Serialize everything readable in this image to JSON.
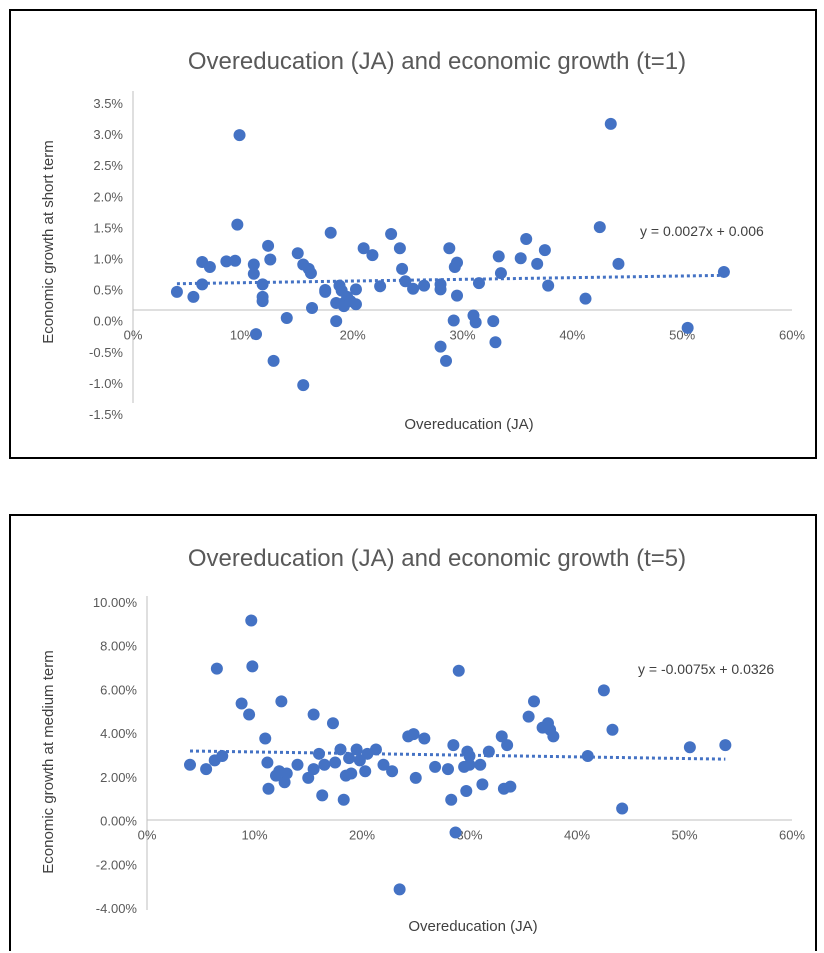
{
  "colors": {
    "point": "#4472C4",
    "trend": "#4472C4",
    "axis": "#BFBFBF",
    "text": "#595959"
  },
  "chart_data": [
    {
      "type": "scatter",
      "title": "Overeducation (JA) and economic growth (t=1)",
      "xlabel": "Overeducation (JA)",
      "ylabel": "Economic growth at short term",
      "xlim": [
        0,
        0.6
      ],
      "ylim": [
        -0.015,
        0.035
      ],
      "x_ticks": [
        "0%",
        "10%",
        "20%",
        "30%",
        "40%",
        "50%",
        "60%"
      ],
      "y_ticks": [
        "3.5%",
        "3.0%",
        "2.5%",
        "2.0%",
        "1.5%",
        "1.0%",
        "0.5%",
        "0.0%",
        "-0.5%",
        "-1.0%",
        "-1.5%"
      ],
      "grid": false,
      "trendline": {
        "slope": 0.0027,
        "intercept": 0.006,
        "label": "y = 0.0027x + 0.006"
      },
      "points": [
        [
          0.04,
          0.0048
        ],
        [
          0.055,
          0.004
        ],
        [
          0.063,
          0.0096
        ],
        [
          0.063,
          0.006
        ],
        [
          0.07,
          0.0088
        ],
        [
          0.085,
          0.0097
        ],
        [
          0.093,
          0.0098
        ],
        [
          0.095,
          0.0156
        ],
        [
          0.097,
          0.03
        ],
        [
          0.11,
          0.0092
        ],
        [
          0.11,
          0.0077
        ],
        [
          0.112,
          -0.002
        ],
        [
          0.118,
          0.006
        ],
        [
          0.118,
          0.004
        ],
        [
          0.118,
          0.0033
        ],
        [
          0.123,
          0.0122
        ],
        [
          0.125,
          0.01
        ],
        [
          0.128,
          -0.0063
        ],
        [
          0.14,
          0.0006
        ],
        [
          0.15,
          0.011
        ],
        [
          0.155,
          0.0092
        ],
        [
          0.155,
          -0.0102
        ],
        [
          0.16,
          0.0085
        ],
        [
          0.162,
          0.0078
        ],
        [
          0.163,
          0.0022
        ],
        [
          0.175,
          0.0048
        ],
        [
          0.175,
          0.0051
        ],
        [
          0.18,
          0.0143
        ],
        [
          0.185,
          0.003
        ],
        [
          0.185,
          0.0001
        ],
        [
          0.188,
          0.0058
        ],
        [
          0.19,
          0.005
        ],
        [
          0.192,
          0.003
        ],
        [
          0.192,
          0.0025
        ],
        [
          0.195,
          0.004
        ],
        [
          0.198,
          0.0033
        ],
        [
          0.203,
          0.0052
        ],
        [
          0.203,
          0.0028
        ],
        [
          0.21,
          0.0118
        ],
        [
          0.218,
          0.0107
        ],
        [
          0.225,
          0.0057
        ],
        [
          0.235,
          0.0141
        ],
        [
          0.243,
          0.0118
        ],
        [
          0.245,
          0.0085
        ],
        [
          0.248,
          0.0065
        ],
        [
          0.255,
          0.0053
        ],
        [
          0.265,
          0.0058
        ],
        [
          0.28,
          0.006
        ],
        [
          0.28,
          0.0052
        ],
        [
          0.28,
          -0.004
        ],
        [
          0.285,
          -0.0063
        ],
        [
          0.288,
          0.0118
        ],
        [
          0.292,
          0.0002
        ],
        [
          0.293,
          0.0088
        ],
        [
          0.295,
          0.0095
        ],
        [
          0.295,
          0.0042
        ],
        [
          0.31,
          0.001
        ],
        [
          0.312,
          -0.0001
        ],
        [
          0.315,
          0.0062
        ],
        [
          0.328,
          0.0001
        ],
        [
          0.33,
          -0.0033
        ],
        [
          0.333,
          0.0105
        ],
        [
          0.335,
          0.0078
        ],
        [
          0.353,
          0.0102
        ],
        [
          0.358,
          0.0133
        ],
        [
          0.368,
          0.0093
        ],
        [
          0.375,
          0.0115
        ],
        [
          0.378,
          0.0058
        ],
        [
          0.412,
          0.0037
        ],
        [
          0.425,
          0.0152
        ],
        [
          0.435,
          0.0318
        ],
        [
          0.442,
          0.0093
        ],
        [
          0.505,
          -0.001
        ],
        [
          0.538,
          0.008
        ]
      ]
    },
    {
      "type": "scatter",
      "title": "Overeducation (JA) and economic growth (t=5)",
      "xlabel": "Overeducation (JA)",
      "ylabel": "Economic growth at medium term",
      "xlim": [
        0,
        0.6
      ],
      "ylim": [
        -0.04,
        0.1
      ],
      "x_ticks": [
        "0%",
        "10%",
        "20%",
        "30%",
        "40%",
        "50%",
        "60%"
      ],
      "y_ticks": [
        "10.00%",
        "8.00%",
        "6.00%",
        "4.00%",
        "2.00%",
        "0.00%",
        "-2.00%",
        "-4.00%"
      ],
      "grid": false,
      "trendline": {
        "slope": -0.0075,
        "intercept": 0.0326,
        "label": "y = -0.0075x + 0.0326"
      },
      "points": [
        [
          0.04,
          0.026
        ],
        [
          0.055,
          0.024
        ],
        [
          0.063,
          0.028
        ],
        [
          0.065,
          0.07
        ],
        [
          0.07,
          0.03
        ],
        [
          0.088,
          0.054
        ],
        [
          0.095,
          0.049
        ],
        [
          0.097,
          0.092
        ],
        [
          0.098,
          0.071
        ],
        [
          0.11,
          0.038
        ],
        [
          0.112,
          0.027
        ],
        [
          0.113,
          0.015
        ],
        [
          0.12,
          0.021
        ],
        [
          0.123,
          0.023
        ],
        [
          0.125,
          0.055
        ],
        [
          0.128,
          0.018
        ],
        [
          0.13,
          0.022
        ],
        [
          0.14,
          0.026
        ],
        [
          0.15,
          0.02
        ],
        [
          0.155,
          0.049
        ],
        [
          0.155,
          0.024
        ],
        [
          0.16,
          0.031
        ],
        [
          0.163,
          0.012
        ],
        [
          0.165,
          0.026
        ],
        [
          0.173,
          0.045
        ],
        [
          0.175,
          0.027
        ],
        [
          0.18,
          0.033
        ],
        [
          0.183,
          0.01
        ],
        [
          0.185,
          0.021
        ],
        [
          0.188,
          0.029
        ],
        [
          0.19,
          0.022
        ],
        [
          0.195,
          0.033
        ],
        [
          0.198,
          0.028
        ],
        [
          0.203,
          0.023
        ],
        [
          0.205,
          0.031
        ],
        [
          0.213,
          0.033
        ],
        [
          0.22,
          0.026
        ],
        [
          0.228,
          0.023
        ],
        [
          0.235,
          -0.031
        ],
        [
          0.243,
          0.039
        ],
        [
          0.248,
          0.04
        ],
        [
          0.25,
          0.02
        ],
        [
          0.258,
          0.038
        ],
        [
          0.268,
          0.025
        ],
        [
          0.28,
          0.024
        ],
        [
          0.283,
          0.01
        ],
        [
          0.285,
          0.035
        ],
        [
          0.287,
          -0.005
        ],
        [
          0.29,
          0.069
        ],
        [
          0.295,
          0.025
        ],
        [
          0.297,
          0.014
        ],
        [
          0.298,
          0.032
        ],
        [
          0.3,
          0.03
        ],
        [
          0.3,
          0.026
        ],
        [
          0.31,
          0.026
        ],
        [
          0.312,
          0.017
        ],
        [
          0.318,
          0.032
        ],
        [
          0.33,
          0.039
        ],
        [
          0.332,
          0.015
        ],
        [
          0.335,
          0.035
        ],
        [
          0.338,
          0.016
        ],
        [
          0.355,
          0.048
        ],
        [
          0.36,
          0.055
        ],
        [
          0.368,
          0.043
        ],
        [
          0.373,
          0.045
        ],
        [
          0.375,
          0.042
        ],
        [
          0.378,
          0.039
        ],
        [
          0.41,
          0.03
        ],
        [
          0.425,
          0.06
        ],
        [
          0.433,
          0.042
        ],
        [
          0.442,
          0.006
        ],
        [
          0.505,
          0.034
        ],
        [
          0.538,
          0.035
        ]
      ]
    }
  ]
}
